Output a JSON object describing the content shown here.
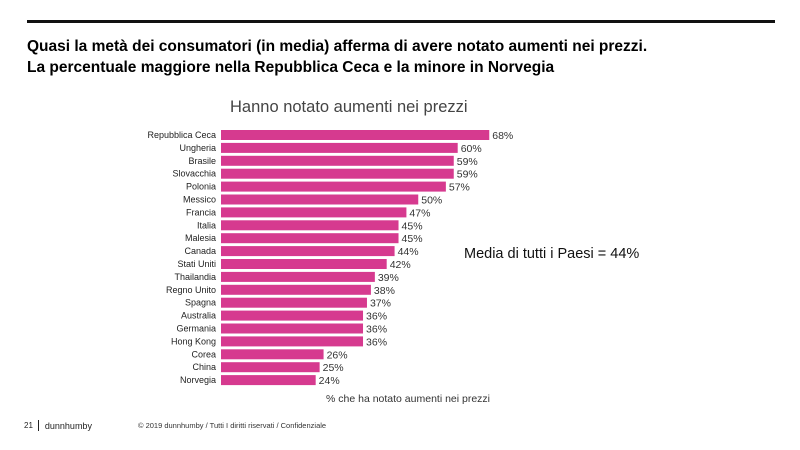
{
  "headline": {
    "line1": "Quasi la metà dei consumatori (in media) afferma di avere notato aumenti nei prezzi.",
    "line2": "La percentuale maggiore nella Repubblica Ceca e la minore in Norvegia"
  },
  "chart_data": {
    "type": "bar",
    "orientation": "horizontal",
    "title": "Hanno notato aumenti nei prezzi",
    "xlabel": "% che ha notato aumenti nei prezzi",
    "ylabel": "",
    "categories": [
      "Repubblica Ceca",
      "Ungheria",
      "Brasile",
      "Slovacchia",
      "Polonia",
      "Messico",
      "Francia",
      "Italia",
      "Malesia",
      "Canada",
      "Stati Uniti",
      "Thailandia",
      "Regno Unito",
      "Spagna",
      "Australia",
      "Germania",
      "Hong Kong",
      "Corea",
      "China",
      "Norvegia"
    ],
    "values": [
      68,
      60,
      59,
      59,
      57,
      50,
      47,
      45,
      45,
      44,
      42,
      39,
      38,
      37,
      36,
      36,
      36,
      26,
      25,
      24
    ],
    "value_labels": [
      "68%",
      "60%",
      "59%",
      "59%",
      "57%",
      "50%",
      "47%",
      "45%",
      "45%",
      "44%",
      "42%",
      "39%",
      "38%",
      "37%",
      "36%",
      "36%",
      "36%",
      "26%",
      "25%",
      "24%"
    ],
    "xlim": [
      0,
      100
    ],
    "grid": false,
    "legend": "none",
    "bar_color": "#D63A8F",
    "annotation": "Media di tutti i Paesi = 44%"
  },
  "footer": {
    "page_number": "21",
    "brand": "dunnhumby",
    "copyright": "© 2019 dunnhumby / Tutti I diritti riservati / Confidenziale"
  }
}
